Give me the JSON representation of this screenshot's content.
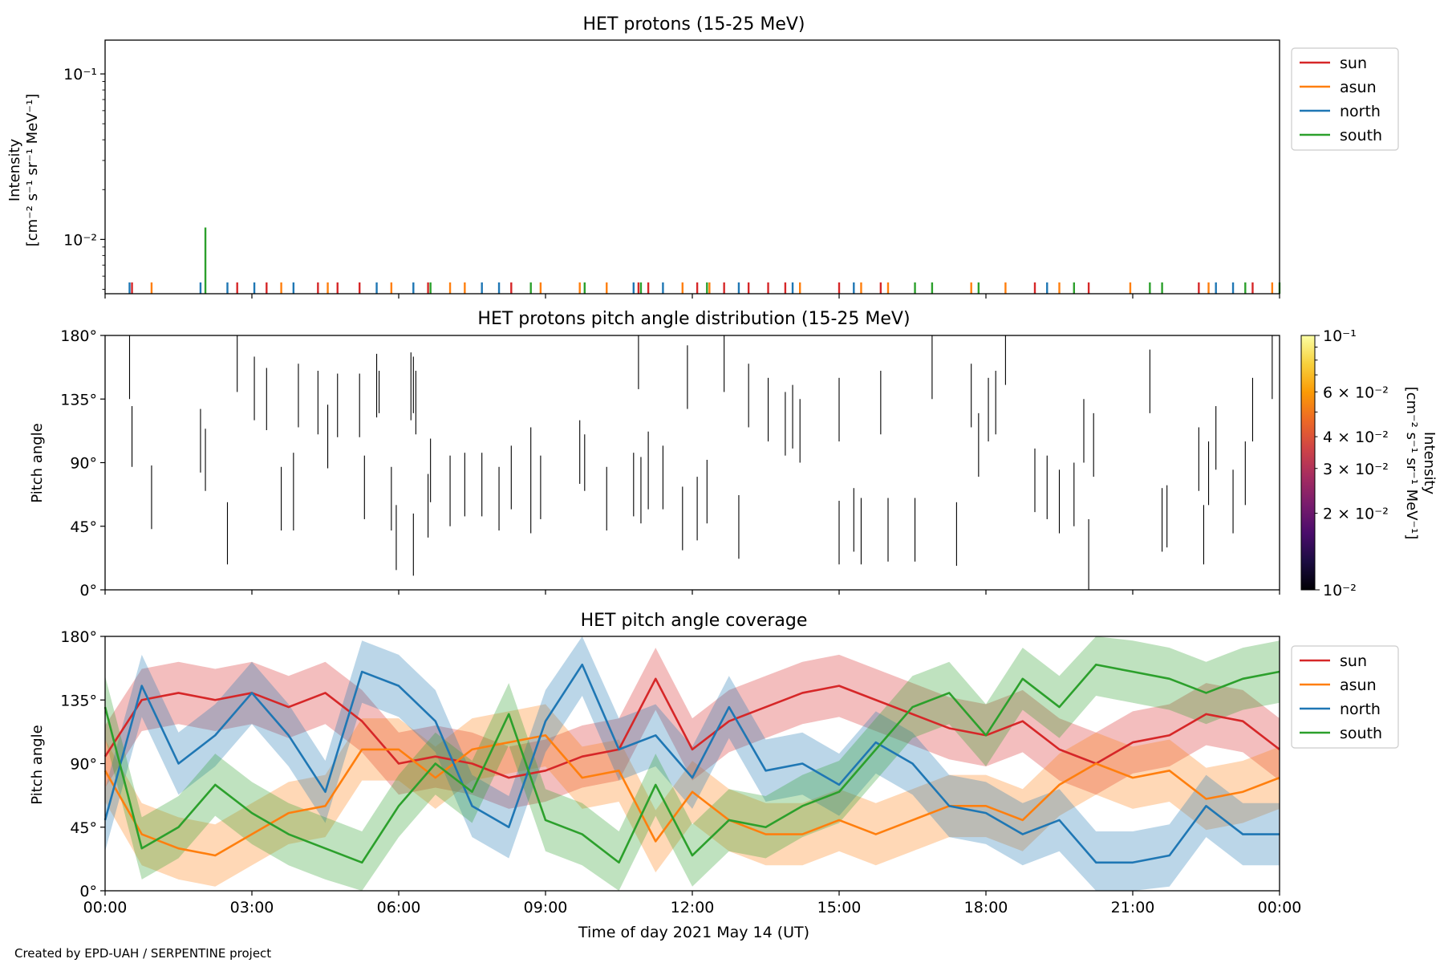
{
  "figure": {
    "credit": "Created by EPD-UAH / SERPENTINE project",
    "x_ticks": [
      "00:00",
      "03:00",
      "06:00",
      "09:00",
      "12:00",
      "15:00",
      "18:00",
      "21:00",
      "00:00"
    ],
    "xlabel": "Time of day 2021 May 14 (UT)"
  },
  "colors": {
    "sun": "#d62728",
    "asun": "#ff7f0e",
    "north": "#1f77b4",
    "south": "#2ca02c"
  },
  "legend": [
    "sun",
    "asun",
    "north",
    "south"
  ],
  "chart_data": [
    {
      "type": "line",
      "title": "HET protons (15-25 MeV)",
      "ylabel_line1": "Intensity",
      "ylabel_line2": "[cm⁻² s⁻¹ sr⁻¹ MeV⁻¹]",
      "yscale": "log",
      "ylim": [
        0.0047,
        0.16
      ],
      "y_ticks": [
        {
          "value": 0.1,
          "label": "10⁻¹"
        },
        {
          "value": 0.01,
          "label": "10⁻²"
        }
      ],
      "xlim_hours": [
        0,
        24
      ],
      "legend_position": "outside-right",
      "series": [
        {
          "name": "sun",
          "hours": [
            0.55,
            2.7,
            3.3,
            4.35,
            4.75,
            5.2,
            6.6,
            8.3,
            10.9,
            11.1,
            12.1,
            12.65,
            13.15,
            13.55,
            13.9,
            15.0,
            15.85,
            19.0,
            20.1,
            22.35,
            23.45
          ],
          "values": [
            0.0055,
            0.0055,
            0.0055,
            0.0055,
            0.0055,
            0.0055,
            0.0055,
            0.0055,
            0.0055,
            0.0055,
            0.0055,
            0.0055,
            0.0055,
            0.0055,
            0.0055,
            0.0055,
            0.0055,
            0.0055,
            0.0055,
            0.0055,
            0.0055
          ]
        },
        {
          "name": "asun",
          "hours": [
            0.95,
            3.6,
            4.55,
            5.85,
            7.05,
            7.35,
            8.9,
            9.7,
            10.25,
            11.8,
            12.35,
            14.2,
            15.45,
            16.0,
            17.7,
            18.4,
            19.5,
            20.95,
            22.55,
            23.85
          ],
          "values": [
            0.0055,
            0.0055,
            0.0055,
            0.0055,
            0.0055,
            0.0055,
            0.0055,
            0.0055,
            0.0055,
            0.0055,
            0.0055,
            0.0055,
            0.0055,
            0.0055,
            0.0055,
            0.0055,
            0.0055,
            0.0055,
            0.0055,
            0.0055
          ]
        },
        {
          "name": "north",
          "hours": [
            0.5,
            1.95,
            2.5,
            3.05,
            3.85,
            5.55,
            6.3,
            7.7,
            8.05,
            10.8,
            11.4,
            12.95,
            14.05,
            15.3,
            19.25,
            22.7,
            23.05
          ],
          "values": [
            0.0055,
            0.0055,
            0.0055,
            0.0055,
            0.0055,
            0.0055,
            0.0055,
            0.0055,
            0.0055,
            0.0055,
            0.0055,
            0.0055,
            0.0055,
            0.0055,
            0.0055,
            0.0055,
            0.0055
          ]
        },
        {
          "name": "south",
          "hours": [
            2.05,
            6.65,
            8.7,
            9.8,
            10.95,
            12.3,
            16.55,
            16.9,
            17.85,
            19.8,
            21.35,
            21.6,
            23.3,
            24.0
          ],
          "values": [
            0.0118,
            0.0055,
            0.0055,
            0.0055,
            0.0055,
            0.0055,
            0.0055,
            0.0055,
            0.0055,
            0.0055,
            0.0055,
            0.0055,
            0.0055,
            0.0055
          ]
        }
      ]
    },
    {
      "type": "heatmap",
      "title": "HET protons pitch angle distribution (15-25 MeV)",
      "ylabel": "Pitch angle",
      "ylim": [
        0,
        180
      ],
      "y_ticks": [
        "0°",
        "45°",
        "90°",
        "135°",
        "180°"
      ],
      "colorbar": {
        "label_line1": "Intensity",
        "label_line2": "[cm⁻² s⁻¹ sr⁻¹ MeV⁻¹]",
        "scale": "log",
        "range": [
          0.01,
          0.1
        ],
        "ticks": [
          {
            "value": 0.1,
            "label": "10⁻¹"
          },
          {
            "value": 0.06,
            "label": "6 × 10⁻²"
          },
          {
            "value": 0.04,
            "label": "4 × 10⁻²"
          },
          {
            "value": 0.03,
            "label": "3 × 10⁻²"
          },
          {
            "value": 0.02,
            "label": "2 × 10⁻²"
          },
          {
            "value": 0.01,
            "label": "10⁻²"
          }
        ]
      },
      "segments": [
        {
          "hour": 0.5,
          "pa_low": 135,
          "pa_high": 180
        },
        {
          "hour": 0.55,
          "pa_low": 87,
          "pa_high": 130
        },
        {
          "hour": 0.95,
          "pa_low": 43,
          "pa_high": 88
        },
        {
          "hour": 1.95,
          "pa_low": 83,
          "pa_high": 128
        },
        {
          "hour": 2.05,
          "pa_low": 70,
          "pa_high": 114
        },
        {
          "hour": 2.5,
          "pa_low": 18,
          "pa_high": 62
        },
        {
          "hour": 2.7,
          "pa_low": 140,
          "pa_high": 180
        },
        {
          "hour": 3.05,
          "pa_low": 120,
          "pa_high": 165
        },
        {
          "hour": 3.3,
          "pa_low": 113,
          "pa_high": 157
        },
        {
          "hour": 3.6,
          "pa_low": 42,
          "pa_high": 87
        },
        {
          "hour": 3.85,
          "pa_low": 42,
          "pa_high": 97
        },
        {
          "hour": 3.95,
          "pa_low": 115,
          "pa_high": 160
        },
        {
          "hour": 4.35,
          "pa_low": 110,
          "pa_high": 155
        },
        {
          "hour": 4.55,
          "pa_low": 86,
          "pa_high": 131
        },
        {
          "hour": 4.75,
          "pa_low": 108,
          "pa_high": 153
        },
        {
          "hour": 5.2,
          "pa_low": 108,
          "pa_high": 153
        },
        {
          "hour": 5.55,
          "pa_low": 122,
          "pa_high": 167
        },
        {
          "hour": 5.6,
          "pa_low": 125,
          "pa_high": 155
        },
        {
          "hour": 5.3,
          "pa_low": 50,
          "pa_high": 95
        },
        {
          "hour": 5.85,
          "pa_low": 42,
          "pa_high": 87
        },
        {
          "hour": 5.95,
          "pa_low": 14,
          "pa_high": 60
        },
        {
          "hour": 6.3,
          "pa_low": 10,
          "pa_high": 54
        },
        {
          "hour": 6.25,
          "pa_low": 120,
          "pa_high": 168
        },
        {
          "hour": 6.3,
          "pa_low": 125,
          "pa_high": 165
        },
        {
          "hour": 6.35,
          "pa_low": 110,
          "pa_high": 155
        },
        {
          "hour": 6.6,
          "pa_low": 37,
          "pa_high": 82
        },
        {
          "hour": 6.65,
          "pa_low": 62,
          "pa_high": 107
        },
        {
          "hour": 7.05,
          "pa_low": 45,
          "pa_high": 95
        },
        {
          "hour": 7.35,
          "pa_low": 52,
          "pa_high": 97
        },
        {
          "hour": 7.7,
          "pa_low": 52,
          "pa_high": 97
        },
        {
          "hour": 8.05,
          "pa_low": 42,
          "pa_high": 87
        },
        {
          "hour": 8.3,
          "pa_low": 57,
          "pa_high": 102
        },
        {
          "hour": 8.7,
          "pa_low": 40,
          "pa_high": 115
        },
        {
          "hour": 8.9,
          "pa_low": 50,
          "pa_high": 95
        },
        {
          "hour": 9.7,
          "pa_low": 75,
          "pa_high": 120
        },
        {
          "hour": 9.8,
          "pa_low": 70,
          "pa_high": 110
        },
        {
          "hour": 10.25,
          "pa_low": 42,
          "pa_high": 87
        },
        {
          "hour": 10.8,
          "pa_low": 52,
          "pa_high": 97
        },
        {
          "hour": 10.95,
          "pa_low": 47,
          "pa_high": 94
        },
        {
          "hour": 11.1,
          "pa_low": 57,
          "pa_high": 112
        },
        {
          "hour": 10.9,
          "pa_low": 142,
          "pa_high": 180
        },
        {
          "hour": 11.4,
          "pa_low": 57,
          "pa_high": 102
        },
        {
          "hour": 11.8,
          "pa_low": 28,
          "pa_high": 73
        },
        {
          "hour": 11.9,
          "pa_low": 128,
          "pa_high": 173
        },
        {
          "hour": 12.1,
          "pa_low": 35,
          "pa_high": 80
        },
        {
          "hour": 12.3,
          "pa_low": 47,
          "pa_high": 92
        },
        {
          "hour": 12.65,
          "pa_low": 140,
          "pa_high": 180
        },
        {
          "hour": 12.95,
          "pa_low": 22,
          "pa_high": 67
        },
        {
          "hour": 13.15,
          "pa_low": 115,
          "pa_high": 160
        },
        {
          "hour": 13.55,
          "pa_low": 105,
          "pa_high": 150
        },
        {
          "hour": 13.9,
          "pa_low": 95,
          "pa_high": 140
        },
        {
          "hour": 14.05,
          "pa_low": 100,
          "pa_high": 145
        },
        {
          "hour": 14.2,
          "pa_low": 90,
          "pa_high": 135
        },
        {
          "hour": 15.0,
          "pa_low": 105,
          "pa_high": 150
        },
        {
          "hour": 15.0,
          "pa_low": 18,
          "pa_high": 63
        },
        {
          "hour": 15.3,
          "pa_low": 27,
          "pa_high": 72
        },
        {
          "hour": 15.45,
          "pa_low": 18,
          "pa_high": 65
        },
        {
          "hour": 15.85,
          "pa_low": 110,
          "pa_high": 155
        },
        {
          "hour": 16.0,
          "pa_low": 20,
          "pa_high": 65
        },
        {
          "hour": 16.55,
          "pa_low": 20,
          "pa_high": 65
        },
        {
          "hour": 16.9,
          "pa_low": 135,
          "pa_high": 180
        },
        {
          "hour": 17.4,
          "pa_low": 17,
          "pa_high": 62
        },
        {
          "hour": 17.7,
          "pa_low": 115,
          "pa_high": 160
        },
        {
          "hour": 17.85,
          "pa_low": 80,
          "pa_high": 125
        },
        {
          "hour": 18.05,
          "pa_low": 105,
          "pa_high": 150
        },
        {
          "hour": 18.2,
          "pa_low": 110,
          "pa_high": 155
        },
        {
          "hour": 18.4,
          "pa_low": 145,
          "pa_high": 180
        },
        {
          "hour": 19.0,
          "pa_low": 55,
          "pa_high": 100
        },
        {
          "hour": 19.25,
          "pa_low": 50,
          "pa_high": 95
        },
        {
          "hour": 19.5,
          "pa_low": 40,
          "pa_high": 85
        },
        {
          "hour": 19.8,
          "pa_low": 45,
          "pa_high": 90
        },
        {
          "hour": 20.1,
          "pa_low": 0,
          "pa_high": 50
        },
        {
          "hour": 20.0,
          "pa_low": 90,
          "pa_high": 135
        },
        {
          "hour": 20.2,
          "pa_low": 80,
          "pa_high": 125
        },
        {
          "hour": 21.35,
          "pa_low": 125,
          "pa_high": 170
        },
        {
          "hour": 21.6,
          "pa_low": 27,
          "pa_high": 72
        },
        {
          "hour": 21.7,
          "pa_low": 30,
          "pa_high": 74
        },
        {
          "hour": 22.35,
          "pa_low": 70,
          "pa_high": 115
        },
        {
          "hour": 22.45,
          "pa_low": 18,
          "pa_high": 60
        },
        {
          "hour": 22.55,
          "pa_low": 60,
          "pa_high": 105
        },
        {
          "hour": 22.7,
          "pa_low": 85,
          "pa_high": 130
        },
        {
          "hour": 23.05,
          "pa_low": 40,
          "pa_high": 85
        },
        {
          "hour": 23.3,
          "pa_low": 60,
          "pa_high": 105
        },
        {
          "hour": 23.45,
          "pa_low": 105,
          "pa_high": 150
        },
        {
          "hour": 23.85,
          "pa_low": 135,
          "pa_high": 180
        }
      ]
    },
    {
      "type": "area",
      "title": "HET pitch angle coverage",
      "ylabel": "Pitch angle",
      "ylim": [
        0,
        180
      ],
      "y_ticks": [
        "0°",
        "45°",
        "90°",
        "135°",
        "180°"
      ],
      "band_halfwidth_deg": 22,
      "legend_position": "outside-right",
      "hours": [
        0,
        0.75,
        1.5,
        2.25,
        3,
        3.75,
        4.5,
        5.25,
        6,
        6.75,
        7.5,
        8.25,
        9,
        9.75,
        10.5,
        11.25,
        12,
        12.75,
        13.5,
        14.25,
        15,
        15.75,
        16.5,
        17.25,
        18,
        18.75,
        19.5,
        20.25,
        21,
        21.75,
        22.5,
        23.25,
        24
      ],
      "series": [
        {
          "name": "sun",
          "values": [
            95,
            135,
            140,
            135,
            140,
            130,
            140,
            120,
            90,
            95,
            90,
            80,
            85,
            95,
            100,
            150,
            100,
            120,
            130,
            140,
            145,
            135,
            125,
            115,
            110,
            120,
            100,
            90,
            105,
            110,
            125,
            120,
            100
          ]
        },
        {
          "name": "asun",
          "values": [
            85,
            40,
            30,
            25,
            40,
            55,
            60,
            100,
            100,
            80,
            100,
            105,
            110,
            80,
            85,
            35,
            70,
            50,
            40,
            40,
            50,
            40,
            50,
            60,
            60,
            50,
            75,
            90,
            80,
            85,
            65,
            70,
            80
          ]
        },
        {
          "name": "north",
          "values": [
            50,
            145,
            90,
            110,
            140,
            110,
            70,
            155,
            145,
            120,
            60,
            45,
            120,
            160,
            100,
            110,
            80,
            130,
            85,
            90,
            75,
            105,
            90,
            60,
            55,
            40,
            50,
            20,
            20,
            25,
            60,
            40,
            40
          ]
        },
        {
          "name": "south",
          "values": [
            130,
            30,
            45,
            75,
            55,
            40,
            30,
            20,
            60,
            90,
            70,
            125,
            50,
            40,
            20,
            75,
            25,
            50,
            45,
            60,
            70,
            100,
            130,
            140,
            110,
            150,
            130,
            160,
            155,
            150,
            140,
            150,
            155
          ]
        }
      ]
    }
  ]
}
